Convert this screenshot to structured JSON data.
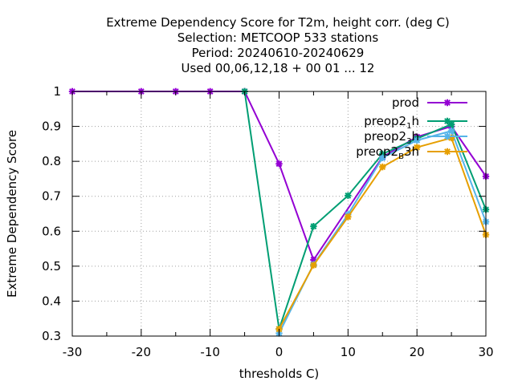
{
  "chart_data": {
    "type": "line",
    "title_lines": [
      "Extreme Dependency Score  for T2m, height corr. (deg C)",
      "Selection: METCOOP    533 stations",
      "Period: 20240610-20240629",
      "Used  00,06,12,18 + 00 01 ... 12"
    ],
    "xlabel": "thresholds C)",
    "ylabel": "Extreme Dependency Score",
    "xlim": [
      -30,
      30
    ],
    "ylim": [
      0.3,
      1.0
    ],
    "xticks": [
      -30,
      -20,
      -10,
      0,
      10,
      20,
      30
    ],
    "yticks": [
      0.3,
      0.4,
      0.5,
      0.6,
      0.7,
      0.8,
      0.9,
      1.0
    ],
    "ytick_labels": [
      "0.3",
      "0.4",
      "0.5",
      "0.6",
      "0.7",
      "0.8",
      "0.9",
      "1"
    ],
    "grid": true,
    "legend_position": "top-right",
    "series": [
      {
        "name": "prod",
        "legend_parts": [
          [
            "prod",
            ""
          ]
        ],
        "color": "#9400d3",
        "points": [
          [
            -30,
            1.0
          ],
          [
            -20,
            1.0
          ],
          [
            -15,
            1.0
          ],
          [
            -10,
            1.0
          ],
          [
            -5,
            1.0
          ],
          [
            0,
            0.793
          ],
          [
            5,
            0.518
          ],
          [
            15,
            0.812
          ],
          [
            20,
            0.87
          ],
          [
            25,
            0.9
          ],
          [
            30,
            0.757
          ]
        ]
      },
      {
        "name": "preop2_1h",
        "legend_parts": [
          [
            "preop2",
            ""
          ],
          [
            "1",
            "sub"
          ],
          [
            "h",
            ""
          ]
        ],
        "color": "#009e73",
        "points": [
          [
            -5,
            1.0
          ],
          [
            0,
            0.32
          ],
          [
            5,
            0.614
          ],
          [
            10,
            0.702
          ],
          [
            15,
            0.821
          ],
          [
            20,
            0.865
          ],
          [
            25,
            0.906
          ],
          [
            30,
            0.662
          ]
        ]
      },
      {
        "name": "preop2_3h",
        "legend_parts": [
          [
            "preop2",
            ""
          ],
          [
            "3",
            "sub"
          ],
          [
            "h",
            ""
          ]
        ],
        "color": "#56b4e9",
        "points": [
          [
            0,
            0.308
          ],
          [
            5,
            0.505
          ],
          [
            10,
            0.648
          ],
          [
            15,
            0.81
          ],
          [
            20,
            0.86
          ],
          [
            25,
            0.887
          ],
          [
            30,
            0.627
          ]
        ]
      },
      {
        "name": "preop2_B3h",
        "legend_parts": [
          [
            "preop2",
            ""
          ],
          [
            "B",
            "sub"
          ],
          [
            "3h",
            ""
          ]
        ],
        "color": "#e69f00",
        "points": [
          [
            0,
            0.32
          ],
          [
            5,
            0.503
          ],
          [
            10,
            0.641
          ],
          [
            15,
            0.784
          ],
          [
            20,
            0.84
          ],
          [
            25,
            0.867
          ],
          [
            30,
            0.59
          ]
        ]
      }
    ]
  }
}
